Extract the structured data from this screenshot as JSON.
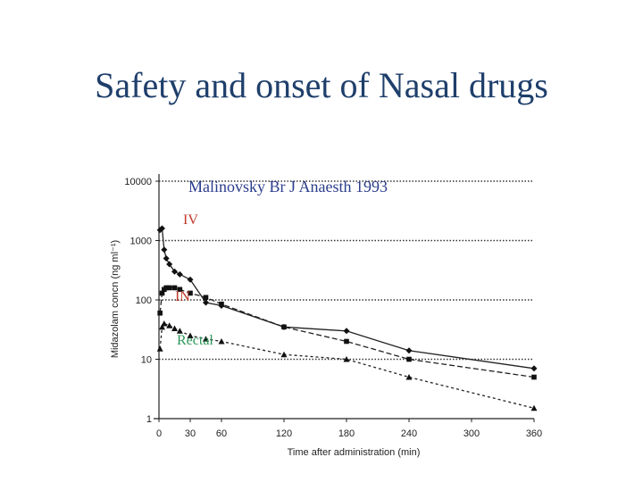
{
  "slide": {
    "title": "Safety and onset of Nasal drugs"
  },
  "colors": {
    "title": "#1f3f6b",
    "citation": "#2b3d8c",
    "iv": "#c0392b",
    "in": "#c0392b",
    "rectal": "#2e9a5a",
    "lines": "#222222"
  },
  "chart_data": {
    "type": "line",
    "title": "",
    "citation": "Malinovsky Br J Anaesth 1993",
    "xlabel": "Time after administration (min)",
    "ylabel": "Midazolam concn (ng ml⁻¹)",
    "xlim": [
      0,
      360
    ],
    "ylim": [
      1,
      10000
    ],
    "yscale": "log",
    "xticks": [
      0,
      30,
      60,
      120,
      180,
      240,
      300,
      360
    ],
    "yticks": [
      1,
      10,
      100,
      1000,
      10000
    ],
    "ytick_labels": [
      "1",
      "10",
      "100",
      "1000",
      "10000"
    ],
    "grid": "horizontal dotted",
    "series": [
      {
        "name": "IV",
        "label_color": "#c0392b",
        "marker": "diamond",
        "dash": "",
        "x": [
          1,
          3,
          5,
          7,
          10,
          15,
          20,
          30,
          45,
          60,
          120,
          180,
          240,
          360
        ],
        "y": [
          1500,
          1600,
          700,
          500,
          400,
          300,
          270,
          220,
          90,
          80,
          35,
          30,
          14,
          7
        ]
      },
      {
        "name": "IN",
        "label_color": "#c0392b",
        "marker": "square",
        "dash": "6,3",
        "x": [
          1,
          3,
          5,
          7,
          10,
          15,
          20,
          30,
          45,
          60,
          120,
          180,
          240,
          360
        ],
        "y": [
          60,
          130,
          150,
          160,
          160,
          160,
          150,
          130,
          110,
          85,
          35,
          20,
          10,
          5
        ]
      },
      {
        "name": "Rectal",
        "label_color": "#2e9a5a",
        "marker": "triangle",
        "dash": "3,3",
        "x": [
          1,
          3,
          5,
          10,
          15,
          20,
          30,
          45,
          60,
          120,
          180,
          240,
          360
        ],
        "y": [
          15,
          35,
          40,
          37,
          33,
          30,
          25,
          22,
          20,
          12,
          10,
          5,
          1.5
        ]
      }
    ]
  }
}
